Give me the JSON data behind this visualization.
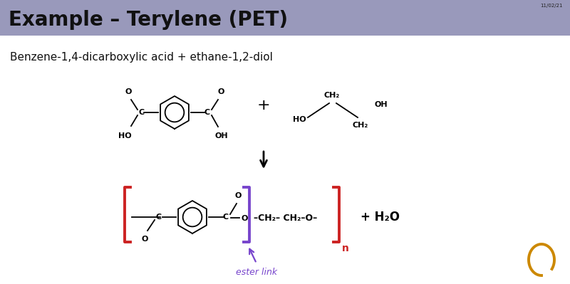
{
  "title": "Example – Terylene (PET)",
  "title_bg": "#9999bb",
  "slide_bg": "#e0e0ea",
  "content_bg": "#ffffff",
  "subtitle": "Benzene-1,4-dicarboxylic acid + ethane-1,2-diol",
  "ester_link_label": "ester link",
  "ester_link_color": "#7744cc",
  "bracket_red": "#cc2222",
  "bracket_purple": "#7744cc",
  "date_text": "11/02/21",
  "n_label": "n",
  "ring_color": "#000000",
  "bond_color": "#000000",
  "curl_color": "#cc8800"
}
